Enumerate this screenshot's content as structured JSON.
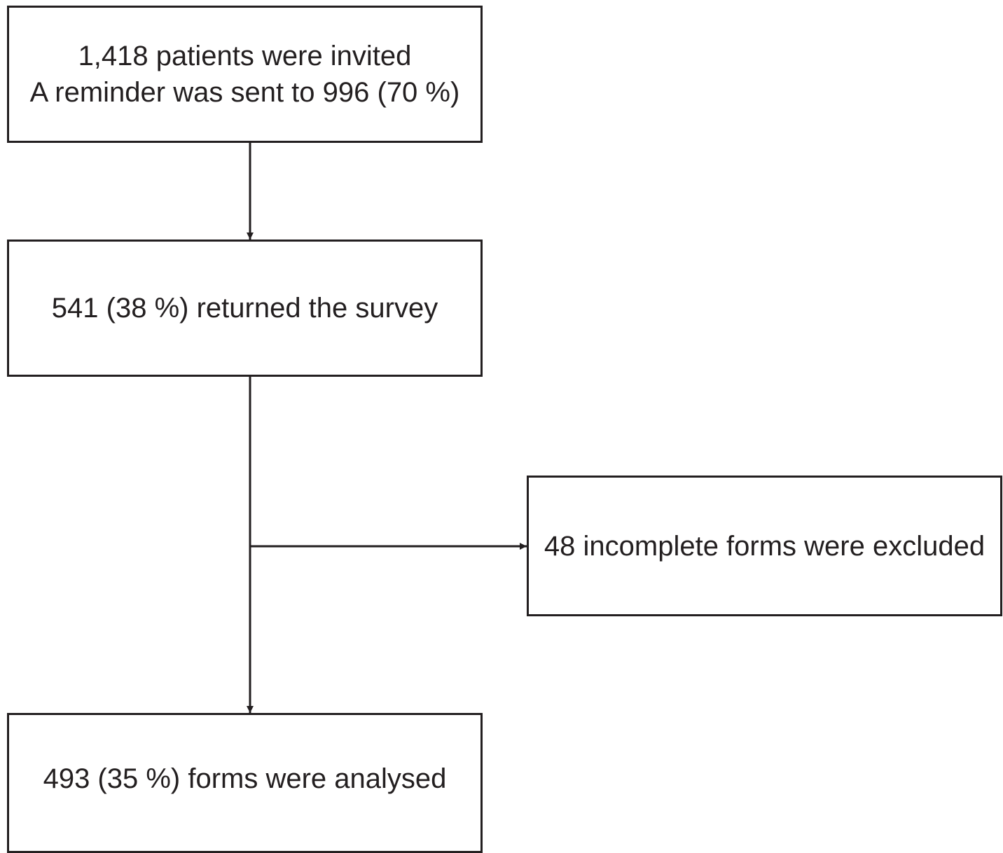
{
  "flowchart": {
    "invited": {
      "line1": "1,418 patients were invited",
      "line2": "A reminder was sent to 996 (70 %)"
    },
    "returned": {
      "text": "541 (38 %) returned the survey"
    },
    "excluded": {
      "text": "48 incomplete forms were excluded"
    },
    "analysed": {
      "text": "493 (35 %) forms were analysed"
    }
  }
}
